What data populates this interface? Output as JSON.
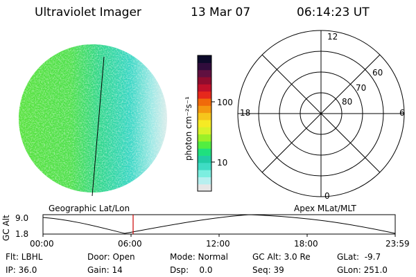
{
  "header": {
    "instrument": "Ultraviolet Imager",
    "date": "13 Mar 07",
    "time": "06:14:23 UT"
  },
  "colorbar": {
    "unit_label": "photon cm⁻²s⁻¹",
    "ticks": [
      "100",
      "10"
    ],
    "colors": [
      "#e6e6e6",
      "#b7efef",
      "#7ceee0",
      "#3fdcc4",
      "#22cca6",
      "#1fe07e",
      "#52ee40",
      "#9cf028",
      "#d8f22a",
      "#f6ea24",
      "#f6c61c",
      "#f49810",
      "#f06a0a",
      "#e6281c",
      "#c0102a",
      "#900c2e",
      "#601040",
      "#300c3c",
      "#0c0a2a"
    ]
  },
  "polar_plot": {
    "clock_labels": {
      "top": "12",
      "left": "18",
      "right": "6",
      "bottom": "0"
    },
    "lat_labels": [
      "60",
      "70",
      "80"
    ]
  },
  "timeline": {
    "left_label": "Geographic Lat/Lon",
    "right_label": "Apex MLat/MLT",
    "axis_title": "GC Alt",
    "y_ticks": [
      "9.0",
      "1.8"
    ],
    "x_ticks": [
      "00:00",
      "06:00",
      "12:00",
      "18:00",
      "23:59"
    ]
  },
  "info": {
    "row1": {
      "flt": "Flt: LBHL",
      "door": "Door: Open",
      "mode": "Mode: Normal",
      "gcalt": "GC Alt: 3.0 Re",
      "glat": "GLat:  -9.7"
    },
    "row2": {
      "ip": "IP: 36.0",
      "gain": "Gain: 14",
      "dsp": "Dsp:    0.0",
      "seq": "Seq: 39",
      "glon": "GLon: 251.0"
    }
  }
}
